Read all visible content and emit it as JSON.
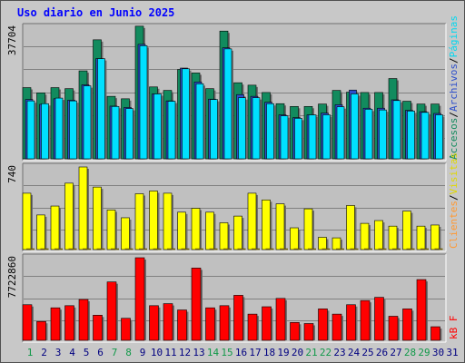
{
  "title": "Uso diario en Junio 2025",
  "colors": {
    "frame": "#c8c8c8",
    "panel": "#c0c0c0",
    "grid": "#808080",
    "accesos": "#128b5e",
    "archivos": "#2c4ecb",
    "paginas": "#00e0ff",
    "visitas": "#ffff00",
    "clientes": "#ff9933",
    "kbf": "#ff0000",
    "weekend": "#119949",
    "weekday": "#000080"
  },
  "legend": {
    "top": [
      {
        "text": "Accesos",
        "color": "#128b5e"
      },
      {
        "text": "/",
        "color": "#000000"
      },
      {
        "text": "Archivos",
        "color": "#2c4ecb"
      },
      {
        "text": "/",
        "color": "#000000"
      },
      {
        "text": "Páginas",
        "color": "#00d8f0"
      }
    ],
    "middle": [
      {
        "text": "Clientes",
        "color": "#ff9933"
      },
      {
        "text": "/",
        "color": "#000000"
      },
      {
        "text": "Visitas",
        "color": "#e0d800"
      }
    ],
    "bottom": [
      {
        "text": "kB F",
        "color": "#ff0000"
      }
    ]
  },
  "chart_data": {
    "type": "bar",
    "title": "Uso diario en Junio 2025",
    "x": [
      "1",
      "2",
      "3",
      "4",
      "5",
      "6",
      "7",
      "8",
      "9",
      "10",
      "11",
      "12",
      "13",
      "14",
      "15",
      "16",
      "17",
      "18",
      "19",
      "20",
      "21",
      "22",
      "23",
      "24",
      "25",
      "26",
      "27",
      "28",
      "29",
      "30",
      "31"
    ],
    "weekend_days": [
      "1",
      "7",
      "8",
      "14",
      "15",
      "21",
      "22",
      "28",
      "29"
    ],
    "panels": [
      {
        "name": "accesos-panel",
        "ymax_label": "37704",
        "ylim": [
          0,
          37704
        ],
        "series": [
          {
            "name": "Accesos",
            "color": "#128b5e",
            "values": [
              20400,
              18900,
              20400,
              20100,
              25200,
              34100,
              17900,
              17200,
              38000,
              20600,
              19600,
              25600,
              24600,
              20100,
              36600,
              21800,
              21100,
              19000,
              15800,
              15000,
              15000,
              15700,
              19600,
              19100,
              19000,
              19000,
              23000,
              16500,
              15700,
              15700,
              0
            ]
          },
          {
            "name": "Archivos",
            "color": "#2c4ecb",
            "values": [
              17000,
              15600,
              17200,
              16800,
              21200,
              28700,
              15100,
              14700,
              32800,
              18600,
              16600,
              26000,
              22000,
              17100,
              31800,
              18400,
              17900,
              16200,
              12600,
              11800,
              12600,
              13100,
              15500,
              19700,
              14500,
              14500,
              16900,
              13900,
              13500,
              13000,
              0
            ]
          },
          {
            "name": "Páginas",
            "color": "#00e0ff",
            "values": [
              16600,
              15800,
              17400,
              16600,
              20900,
              28700,
              15000,
              14400,
              32400,
              18600,
              16500,
              25800,
              21500,
              17000,
              31500,
              17500,
              17500,
              15800,
              12300,
              11600,
              12600,
              12600,
              14900,
              18600,
              14200,
              14000,
              16700,
              13700,
              13300,
              12600,
              0
            ]
          }
        ]
      },
      {
        "name": "visitas-panel",
        "ymax_label": "740",
        "ylim": [
          0,
          740
        ],
        "series": [
          {
            "name": "Visitas",
            "color": "#ffff00",
            "values": [
              505,
              310,
              390,
              595,
              740,
              560,
              355,
              285,
              500,
              525,
              505,
              335,
              370,
              335,
              240,
              300,
              505,
              445,
              410,
              195,
              365,
              110,
              105,
              395,
              235,
              260,
              210,
              345,
              210,
              220,
              0
            ]
          },
          {
            "name": "Clientes",
            "color": "#ff9933",
            "values": [
              10,
              10,
              10,
              10,
              10,
              10,
              10,
              10,
              10,
              10,
              10,
              10,
              10,
              10,
              10,
              10,
              10,
              10,
              10,
              10,
              10,
              10,
              10,
              10,
              10,
              10,
              10,
              10,
              10,
              10,
              0
            ]
          }
        ]
      },
      {
        "name": "kbf-panel",
        "ymax_label": "7722860",
        "ylim": [
          0,
          7722860
        ],
        "series": [
          {
            "name": "kB F",
            "color": "#ff0000",
            "values": [
              3330000,
              1760000,
              3040000,
              3240000,
              3820000,
              2350000,
              5460000,
              2060000,
              7722860,
              3240000,
              3430000,
              2840000,
              6760000,
              3040000,
              3240000,
              4210000,
              2450000,
              3140000,
              3920000,
              1670000,
              1570000,
              2940000,
              2450000,
              3330000,
              3720000,
              4020000,
              2250000,
              2940000,
              5680000,
              1270000,
              0
            ]
          }
        ]
      }
    ]
  }
}
